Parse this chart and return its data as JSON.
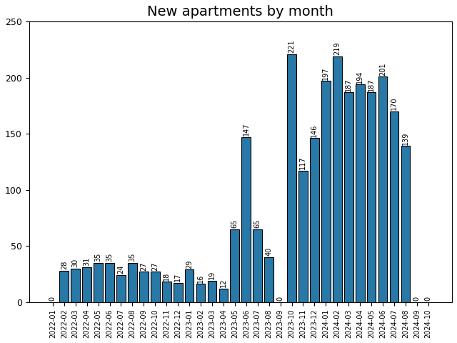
{
  "title": "New apartments by month",
  "categories": [
    "2022-01",
    "2022-02",
    "2022-03",
    "2022-04",
    "2022-05",
    "2022-06",
    "2022-07",
    "2022-08",
    "2022-09",
    "2022-10",
    "2022-11",
    "2022-12",
    "2023-01",
    "2023-02",
    "2023-03",
    "2023-04",
    "2023-05",
    "2023-06",
    "2023-07",
    "2023-08",
    "2023-09",
    "2023-10",
    "2023-11",
    "2023-12",
    "2024-01",
    "2024-02",
    "2024-03",
    "2024-04",
    "2024-05",
    "2024-06",
    "2024-07",
    "2024-08",
    "2024-09",
    "2024-10"
  ],
  "values": [
    0,
    28,
    30,
    31,
    35,
    35,
    24,
    35,
    27,
    27,
    18,
    17,
    29,
    16,
    19,
    12,
    65,
    147,
    65,
    40,
    0,
    221,
    117,
    146,
    197,
    219,
    187,
    194,
    187,
    201,
    170,
    139,
    0,
    0
  ],
  "bar_color": "#2878a8",
  "bar_edgecolor": "#000000",
  "ylim": [
    0,
    250
  ],
  "yticks": [
    0,
    50,
    100,
    150,
    200,
    250
  ],
  "label_fontsize": 7,
  "title_fontsize": 14,
  "xtick_fontsize": 7,
  "ytick_fontsize": 9
}
